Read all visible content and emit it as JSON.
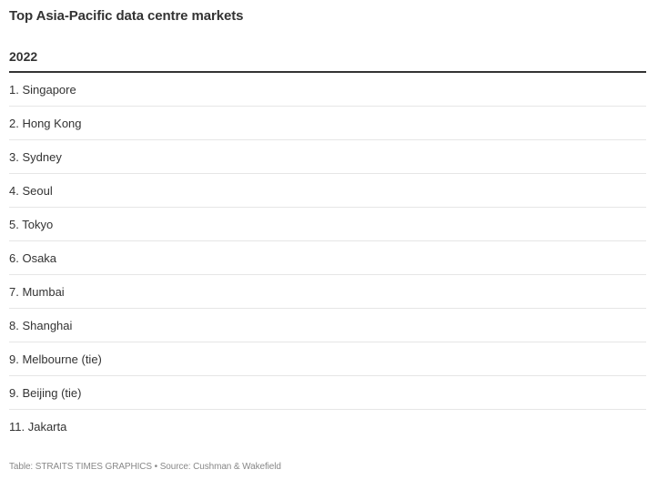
{
  "title": "Top Asia-Pacific data centre markets",
  "footer": "Table: STRAITS TIMES GRAPHICS • Source: Cushman & Wakefield",
  "chart_data": {
    "type": "table",
    "title": "Top Asia-Pacific data centre markets",
    "columns": [
      "2022"
    ],
    "rows": [
      "1. Singapore",
      "2. Hong Kong",
      "3. Sydney",
      "4. Seoul",
      "5. Tokyo",
      "6. Osaka",
      "7. Mumbai",
      "8. Shanghai",
      "9. Melbourne (tie)",
      "9. Beijing (tie)",
      "11. Jakarta"
    ],
    "colors": {
      "text": "#333333",
      "header_rule": "#333333",
      "row_rule": "#e6e6e6",
      "footer_text": "#888888"
    }
  }
}
